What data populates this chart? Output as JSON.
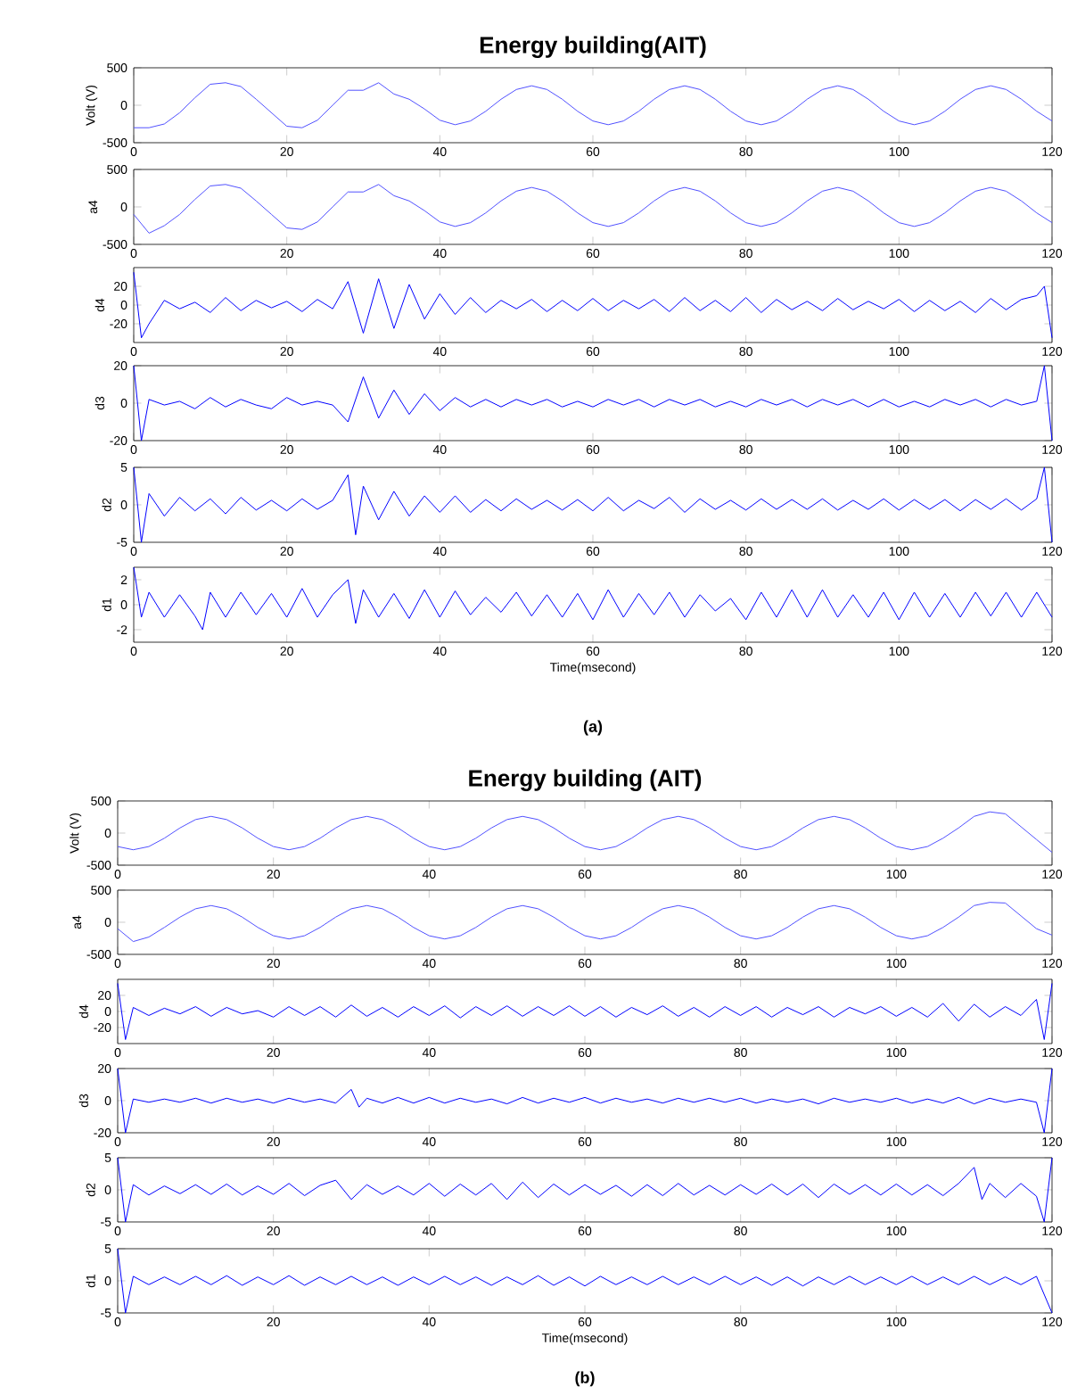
{
  "chart_data": [
    {
      "type": "line",
      "title": "Energy building(AIT)",
      "ylabel": "Volt (V)",
      "xlim": [
        0,
        120
      ],
      "xticks": [
        0,
        20,
        40,
        60,
        80,
        100,
        120
      ],
      "ylim": [
        -500,
        500
      ],
      "yticks": [
        -500,
        0,
        500
      ],
      "series": [
        {
          "color": "#5050ff",
          "x": [
            0,
            2,
            4,
            6,
            8,
            10,
            12,
            14,
            16,
            18,
            20,
            22,
            24,
            26,
            28,
            30,
            32,
            34,
            36,
            38,
            40,
            42,
            44,
            46,
            48,
            50,
            52,
            54,
            56,
            58,
            60,
            62,
            64,
            66,
            68,
            70,
            72,
            74,
            76,
            78,
            80,
            82,
            84,
            86,
            88,
            90,
            92,
            94,
            96,
            98,
            100,
            102,
            104,
            106,
            108,
            110,
            112,
            114,
            116,
            118,
            120
          ],
          "values": [
            -300,
            -300,
            -250,
            -100,
            100,
            280,
            300,
            250,
            80,
            -100,
            -280,
            -300,
            -200,
            0,
            200,
            200,
            300,
            150,
            80,
            -50,
            -200,
            -260,
            -210,
            -80,
            80,
            210,
            260,
            210,
            80,
            -80,
            -210,
            -260,
            -210,
            -80,
            80,
            210,
            260,
            210,
            80,
            -80,
            -210,
            -260,
            -210,
            -80,
            80,
            210,
            260,
            210,
            80,
            -80,
            -210,
            -260,
            -210,
            -80,
            80,
            210,
            260,
            210,
            80,
            -80,
            -210
          ]
        }
      ]
    },
    {
      "type": "line",
      "ylabel": "a4",
      "xlim": [
        0,
        120
      ],
      "xticks": [
        0,
        20,
        40,
        60,
        80,
        100,
        120
      ],
      "ylim": [
        -500,
        500
      ],
      "yticks": [
        -500,
        0,
        500
      ],
      "series": [
        {
          "color": "#5050ff",
          "x": [
            0,
            2,
            4,
            6,
            8,
            10,
            12,
            14,
            16,
            18,
            20,
            22,
            24,
            26,
            28,
            30,
            32,
            34,
            36,
            38,
            40,
            42,
            44,
            46,
            48,
            50,
            52,
            54,
            56,
            58,
            60,
            62,
            64,
            66,
            68,
            70,
            72,
            74,
            76,
            78,
            80,
            82,
            84,
            86,
            88,
            90,
            92,
            94,
            96,
            98,
            100,
            102,
            104,
            106,
            108,
            110,
            112,
            114,
            116,
            118,
            120
          ],
          "values": [
            -100,
            -350,
            -250,
            -100,
            100,
            280,
            300,
            250,
            80,
            -100,
            -280,
            -300,
            -200,
            0,
            200,
            200,
            300,
            150,
            80,
            -50,
            -200,
            -260,
            -210,
            -80,
            80,
            210,
            260,
            210,
            80,
            -80,
            -210,
            -260,
            -210,
            -80,
            80,
            210,
            260,
            210,
            80,
            -80,
            -210,
            -260,
            -210,
            -80,
            80,
            210,
            260,
            210,
            80,
            -80,
            -210,
            -260,
            -210,
            -80,
            80,
            210,
            260,
            210,
            80,
            -80,
            -210
          ]
        }
      ]
    },
    {
      "type": "line",
      "ylabel": "d4",
      "xlim": [
        0,
        120
      ],
      "xticks": [
        0,
        20,
        40,
        60,
        80,
        100,
        120
      ],
      "ylim": [
        -40,
        40
      ],
      "yticks": [
        -20,
        0,
        20
      ],
      "series": [
        {
          "color": "#0000ff",
          "x": [
            0,
            1,
            2,
            4,
            6,
            8,
            10,
            12,
            14,
            16,
            18,
            20,
            22,
            24,
            26,
            28,
            30,
            32,
            34,
            36,
            38,
            40,
            42,
            44,
            46,
            48,
            50,
            52,
            54,
            56,
            58,
            60,
            62,
            64,
            66,
            68,
            70,
            72,
            74,
            76,
            78,
            80,
            82,
            84,
            86,
            88,
            90,
            92,
            94,
            96,
            98,
            100,
            102,
            104,
            106,
            108,
            110,
            112,
            114,
            116,
            118,
            119,
            120
          ],
          "values": [
            35,
            -35,
            -20,
            5,
            -4,
            3,
            -8,
            8,
            -6,
            5,
            -3,
            4,
            -7,
            6,
            -4,
            25,
            -30,
            28,
            -25,
            22,
            -15,
            12,
            -10,
            8,
            -8,
            5,
            -4,
            6,
            -7,
            5,
            -6,
            7,
            -6,
            5,
            -4,
            6,
            -7,
            8,
            -6,
            5,
            -7,
            8,
            -8,
            6,
            -5,
            4,
            -6,
            7,
            -5,
            4,
            -4,
            6,
            -7,
            5,
            -6,
            4,
            -8,
            7,
            -5,
            6,
            10,
            20,
            -35
          ]
        }
      ]
    },
    {
      "type": "line",
      "ylabel": "d3",
      "xlim": [
        0,
        120
      ],
      "xticks": [
        0,
        20,
        40,
        60,
        80,
        100,
        120
      ],
      "ylim": [
        -20,
        20
      ],
      "yticks": [
        -20,
        0,
        20
      ],
      "series": [
        {
          "color": "#0000ff",
          "x": [
            0,
            1,
            2,
            4,
            6,
            8,
            10,
            12,
            14,
            16,
            18,
            20,
            22,
            24,
            26,
            28,
            30,
            32,
            34,
            36,
            38,
            40,
            42,
            44,
            46,
            48,
            50,
            52,
            54,
            56,
            58,
            60,
            62,
            64,
            66,
            68,
            70,
            72,
            74,
            76,
            78,
            80,
            82,
            84,
            86,
            88,
            90,
            92,
            94,
            96,
            98,
            100,
            102,
            104,
            106,
            108,
            110,
            112,
            114,
            116,
            118,
            119,
            120
          ],
          "values": [
            20,
            -20,
            2,
            -1,
            1,
            -3,
            3,
            -2,
            2,
            -1,
            -3,
            3,
            -1,
            1,
            -1,
            -10,
            14,
            -8,
            7,
            -6,
            5,
            -4,
            3,
            -2,
            2,
            -2,
            2,
            -1,
            2,
            -2,
            1,
            -2,
            2,
            -1,
            2,
            -2,
            2,
            -1,
            2,
            -2,
            1,
            -2,
            2,
            -1,
            2,
            -2,
            2,
            -1,
            2,
            -2,
            2,
            -2,
            1,
            -2,
            2,
            -1,
            2,
            -2,
            2,
            -1,
            1,
            20,
            -20
          ]
        }
      ]
    },
    {
      "type": "line",
      "ylabel": "d2",
      "xlim": [
        0,
        120
      ],
      "xticks": [
        0,
        20,
        40,
        60,
        80,
        100,
        120
      ],
      "ylim": [
        -5,
        5
      ],
      "yticks": [
        -5,
        0,
        5
      ],
      "series": [
        {
          "color": "#0000ff",
          "x": [
            0,
            1,
            2,
            4,
            6,
            8,
            10,
            12,
            14,
            16,
            18,
            20,
            22,
            24,
            26,
            28,
            29,
            30,
            32,
            34,
            36,
            38,
            40,
            42,
            44,
            46,
            48,
            50,
            52,
            54,
            56,
            58,
            60,
            62,
            64,
            66,
            68,
            70,
            72,
            74,
            76,
            78,
            80,
            82,
            84,
            86,
            88,
            90,
            92,
            94,
            96,
            98,
            100,
            102,
            104,
            106,
            108,
            110,
            112,
            114,
            116,
            118,
            119,
            120
          ],
          "values": [
            5,
            -5,
            1.5,
            -1.5,
            1,
            -0.8,
            0.8,
            -1.2,
            1,
            -0.7,
            0.6,
            -0.8,
            0.8,
            -0.6,
            0.6,
            4,
            -4,
            2.5,
            -2,
            1.8,
            -1.5,
            1.2,
            -1,
            1.2,
            -1,
            0.7,
            -0.8,
            0.8,
            -0.6,
            0.6,
            -0.7,
            0.7,
            -0.8,
            1,
            -0.8,
            0.6,
            -0.5,
            1,
            -1,
            0.8,
            -0.6,
            0.6,
            -0.7,
            0.8,
            -0.6,
            0.7,
            -0.6,
            0.8,
            -0.7,
            0.6,
            -0.6,
            0.8,
            -0.7,
            0.7,
            -0.6,
            0.7,
            -0.8,
            0.7,
            -0.6,
            0.8,
            -0.7,
            0.8,
            5,
            -5
          ]
        }
      ]
    },
    {
      "type": "line",
      "ylabel": "d1",
      "xlabel": "Time(msecond)",
      "annotations": [
        "(a)"
      ],
      "xlim": [
        0,
        120
      ],
      "xticks": [
        0,
        20,
        40,
        60,
        80,
        100,
        120
      ],
      "ylim": [
        -3,
        3
      ],
      "yticks": [
        -2,
        0,
        2
      ],
      "series": [
        {
          "color": "#0000ff",
          "x": [
            0,
            1,
            2,
            4,
            6,
            8,
            9,
            10,
            12,
            14,
            16,
            18,
            20,
            22,
            24,
            26,
            28,
            29,
            30,
            32,
            34,
            36,
            38,
            40,
            42,
            44,
            46,
            48,
            50,
            52,
            54,
            56,
            58,
            60,
            62,
            64,
            66,
            68,
            70,
            72,
            74,
            76,
            78,
            80,
            82,
            84,
            86,
            88,
            90,
            92,
            94,
            96,
            98,
            100,
            102,
            104,
            106,
            108,
            110,
            112,
            114,
            116,
            118,
            120
          ],
          "values": [
            3,
            -1,
            1,
            -1,
            0.8,
            -0.9,
            -2,
            1,
            -1,
            1,
            -0.8,
            0.9,
            -1,
            1.3,
            -1,
            0.8,
            2,
            -1.5,
            1.2,
            -1,
            0.9,
            -1.1,
            1.2,
            -1,
            1.1,
            -0.8,
            0.6,
            -0.6,
            1,
            -0.9,
            0.8,
            -1,
            0.9,
            -1.2,
            1.2,
            -1,
            0.9,
            -0.8,
            1,
            -1,
            0.8,
            -0.5,
            0.5,
            -1.2,
            1,
            -1,
            1.2,
            -1,
            1.2,
            -1,
            0.8,
            -1,
            1,
            -1.2,
            1,
            -1,
            0.9,
            -1,
            1,
            -0.9,
            1,
            -1,
            1,
            -1
          ]
        }
      ]
    },
    {
      "type": "line",
      "title": "Energy building (AIT)",
      "ylabel": "Volt (V)",
      "xlim": [
        0,
        120
      ],
      "xticks": [
        0,
        20,
        40,
        60,
        80,
        100,
        120
      ],
      "ylim": [
        -500,
        500
      ],
      "yticks": [
        -500,
        0,
        500
      ],
      "series": [
        {
          "color": "#5050ff",
          "x": [
            0,
            2,
            4,
            6,
            8,
            10,
            12,
            14,
            16,
            18,
            20,
            22,
            24,
            26,
            28,
            30,
            32,
            34,
            36,
            38,
            40,
            42,
            44,
            46,
            48,
            50,
            52,
            54,
            56,
            58,
            60,
            62,
            64,
            66,
            68,
            70,
            72,
            74,
            76,
            78,
            80,
            82,
            84,
            86,
            88,
            90,
            92,
            94,
            96,
            98,
            100,
            102,
            104,
            106,
            108,
            110,
            112,
            114,
            116,
            118,
            120
          ],
          "values": [
            -210,
            -260,
            -210,
            -80,
            80,
            210,
            260,
            210,
            80,
            -80,
            -210,
            -260,
            -210,
            -80,
            80,
            210,
            260,
            210,
            80,
            -80,
            -210,
            -260,
            -210,
            -80,
            80,
            210,
            260,
            210,
            80,
            -80,
            -210,
            -260,
            -210,
            -80,
            80,
            210,
            260,
            210,
            80,
            -80,
            -210,
            -260,
            -210,
            -80,
            80,
            210,
            260,
            210,
            80,
            -80,
            -210,
            -260,
            -210,
            -80,
            80,
            260,
            330,
            300,
            100,
            -100,
            -300
          ]
        }
      ]
    },
    {
      "type": "line",
      "ylabel": "a4",
      "xlim": [
        0,
        120
      ],
      "xticks": [
        0,
        20,
        40,
        60,
        80,
        100,
        120
      ],
      "ylim": [
        -500,
        500
      ],
      "yticks": [
        -500,
        0,
        500
      ],
      "series": [
        {
          "color": "#5050ff",
          "x": [
            0,
            2,
            4,
            6,
            8,
            10,
            12,
            14,
            16,
            18,
            20,
            22,
            24,
            26,
            28,
            30,
            32,
            34,
            36,
            38,
            40,
            42,
            44,
            46,
            48,
            50,
            52,
            54,
            56,
            58,
            60,
            62,
            64,
            66,
            68,
            70,
            72,
            74,
            76,
            78,
            80,
            82,
            84,
            86,
            88,
            90,
            92,
            94,
            96,
            98,
            100,
            102,
            104,
            106,
            108,
            110,
            112,
            114,
            116,
            118,
            120
          ],
          "values": [
            -100,
            -300,
            -230,
            -80,
            80,
            210,
            260,
            210,
            80,
            -80,
            -210,
            -260,
            -210,
            -80,
            80,
            210,
            260,
            210,
            80,
            -80,
            -210,
            -260,
            -210,
            -80,
            80,
            210,
            260,
            210,
            80,
            -80,
            -210,
            -260,
            -210,
            -80,
            80,
            210,
            260,
            210,
            80,
            -80,
            -210,
            -260,
            -210,
            -80,
            80,
            210,
            260,
            210,
            80,
            -80,
            -210,
            -260,
            -210,
            -80,
            80,
            260,
            310,
            300,
            100,
            -100,
            -200
          ]
        }
      ]
    },
    {
      "type": "line",
      "ylabel": "d4",
      "xlim": [
        0,
        120
      ],
      "xticks": [
        0,
        20,
        40,
        60,
        80,
        100,
        120
      ],
      "ylim": [
        -40,
        40
      ],
      "yticks": [
        -20,
        0,
        20
      ],
      "series": [
        {
          "color": "#0000ff",
          "x": [
            0,
            1,
            2,
            4,
            6,
            8,
            10,
            12,
            14,
            16,
            18,
            20,
            22,
            24,
            26,
            28,
            30,
            32,
            34,
            36,
            38,
            40,
            42,
            44,
            46,
            48,
            50,
            52,
            54,
            56,
            58,
            60,
            62,
            64,
            66,
            68,
            70,
            72,
            74,
            76,
            78,
            80,
            82,
            84,
            86,
            88,
            90,
            92,
            94,
            96,
            98,
            100,
            102,
            104,
            106,
            108,
            110,
            112,
            114,
            116,
            118,
            119,
            120
          ],
          "values": [
            35,
            -35,
            5,
            -5,
            4,
            -3,
            6,
            -6,
            5,
            -3,
            1,
            -7,
            6,
            -5,
            6,
            -7,
            8,
            -6,
            5,
            -7,
            6,
            -5,
            7,
            -8,
            6,
            -5,
            7,
            -6,
            6,
            -5,
            7,
            -6,
            6,
            -7,
            5,
            -4,
            7,
            -6,
            5,
            -7,
            6,
            -5,
            6,
            -7,
            5,
            -4,
            6,
            -7,
            5,
            -3,
            6,
            -6,
            5,
            -7,
            10,
            -12,
            9,
            -7,
            6,
            -5,
            15,
            -35,
            35
          ]
        }
      ]
    },
    {
      "type": "line",
      "ylabel": "d3",
      "xlim": [
        0,
        120
      ],
      "xticks": [
        0,
        20,
        40,
        60,
        80,
        100,
        120
      ],
      "ylim": [
        -20,
        20
      ],
      "yticks": [
        -20,
        0,
        20
      ],
      "series": [
        {
          "color": "#0000ff",
          "x": [
            0,
            1,
            2,
            4,
            6,
            8,
            10,
            12,
            14,
            16,
            18,
            20,
            22,
            24,
            26,
            28,
            30,
            31,
            32,
            34,
            36,
            38,
            40,
            42,
            44,
            46,
            48,
            50,
            52,
            54,
            56,
            58,
            60,
            62,
            64,
            66,
            68,
            70,
            72,
            74,
            76,
            78,
            80,
            82,
            84,
            86,
            88,
            90,
            92,
            94,
            96,
            98,
            100,
            102,
            104,
            106,
            108,
            110,
            112,
            114,
            116,
            118,
            119,
            120
          ],
          "values": [
            20,
            -20,
            1,
            -1,
            1,
            -1,
            1.5,
            -1.5,
            1.5,
            -1,
            1,
            -1.5,
            1.5,
            -1,
            1,
            -1.5,
            7,
            -4,
            1.5,
            -1.5,
            2,
            -1.5,
            2,
            -1.5,
            1.5,
            -1,
            1,
            -2,
            2,
            -1.5,
            1.5,
            -1,
            2,
            -1.5,
            1.5,
            -1,
            1,
            -1.5,
            1.5,
            -1,
            1.5,
            -1,
            1.5,
            -1.5,
            1,
            -1,
            1,
            -2,
            1.5,
            -1,
            1,
            -1,
            1.5,
            -1.5,
            1,
            -1.5,
            2,
            -2,
            1.5,
            -1,
            1,
            -1,
            -20,
            20
          ]
        }
      ]
    },
    {
      "type": "line",
      "ylabel": "d2",
      "xlim": [
        0,
        120
      ],
      "xticks": [
        0,
        20,
        40,
        60,
        80,
        100,
        120
      ],
      "ylim": [
        -5,
        5
      ],
      "yticks": [
        -5,
        0,
        5
      ],
      "series": [
        {
          "color": "#0000ff",
          "x": [
            0,
            1,
            2,
            4,
            6,
            8,
            10,
            12,
            14,
            16,
            18,
            20,
            22,
            24,
            26,
            28,
            30,
            32,
            34,
            36,
            38,
            40,
            42,
            44,
            46,
            48,
            50,
            52,
            54,
            56,
            58,
            60,
            62,
            64,
            66,
            68,
            70,
            72,
            74,
            76,
            78,
            80,
            82,
            84,
            86,
            88,
            90,
            92,
            94,
            96,
            98,
            100,
            102,
            104,
            106,
            108,
            110,
            111,
            112,
            114,
            116,
            118,
            119,
            120
          ],
          "values": [
            5,
            -5,
            0.8,
            -0.8,
            0.6,
            -0.6,
            0.8,
            -0.7,
            0.9,
            -0.8,
            0.6,
            -0.7,
            1,
            -0.9,
            0.7,
            1.5,
            -1.5,
            0.8,
            -0.7,
            0.6,
            -0.8,
            1,
            -1,
            0.9,
            -0.8,
            1,
            -1.5,
            1.2,
            -1.2,
            0.9,
            -0.8,
            0.8,
            -0.7,
            0.7,
            -1,
            0.8,
            -0.9,
            1,
            -0.8,
            0.7,
            -0.8,
            0.8,
            -0.7,
            0.9,
            -0.8,
            0.9,
            -1.2,
            0.9,
            -0.7,
            0.8,
            -0.8,
            0.9,
            -0.8,
            0.8,
            -0.9,
            1,
            3.5,
            -1.5,
            1,
            -1.2,
            1,
            -1,
            -5,
            5
          ]
        }
      ]
    },
    {
      "type": "line",
      "ylabel": "d1",
      "xlabel": "Time(msecond)",
      "annotations": [
        "(b)"
      ],
      "xlim": [
        0,
        120
      ],
      "xticks": [
        0,
        20,
        40,
        60,
        80,
        100,
        120
      ],
      "ylim": [
        -5,
        5
      ],
      "yticks": [
        -5,
        0,
        5
      ],
      "series": [
        {
          "color": "#0000ff",
          "x": [
            0,
            1,
            2,
            4,
            6,
            8,
            10,
            12,
            14,
            16,
            18,
            20,
            22,
            24,
            26,
            28,
            30,
            32,
            34,
            36,
            38,
            40,
            42,
            44,
            46,
            48,
            50,
            52,
            54,
            56,
            58,
            60,
            62,
            64,
            66,
            68,
            70,
            72,
            74,
            76,
            78,
            80,
            82,
            84,
            86,
            88,
            90,
            92,
            94,
            96,
            98,
            100,
            102,
            104,
            106,
            108,
            110,
            112,
            114,
            116,
            118,
            120
          ],
          "values": [
            5,
            -5,
            0.7,
            -0.6,
            0.6,
            -0.6,
            0.7,
            -0.6,
            0.8,
            -0.7,
            0.6,
            -0.6,
            0.8,
            -0.7,
            0.6,
            -0.6,
            0.7,
            -0.6,
            0.6,
            -0.7,
            0.6,
            -0.6,
            0.7,
            -0.6,
            0.6,
            -0.7,
            0.6,
            -0.6,
            0.8,
            -0.7,
            0.6,
            -0.8,
            0.7,
            -0.6,
            0.6,
            -0.6,
            0.7,
            -0.6,
            0.6,
            -0.6,
            0.7,
            -0.6,
            0.6,
            -0.7,
            0.6,
            -0.8,
            0.6,
            -0.6,
            0.7,
            -0.6,
            0.6,
            -0.6,
            0.7,
            -0.6,
            0.6,
            -0.6,
            0.7,
            -0.6,
            0.6,
            -0.6,
            0.7,
            -5
          ]
        }
      ]
    }
  ]
}
